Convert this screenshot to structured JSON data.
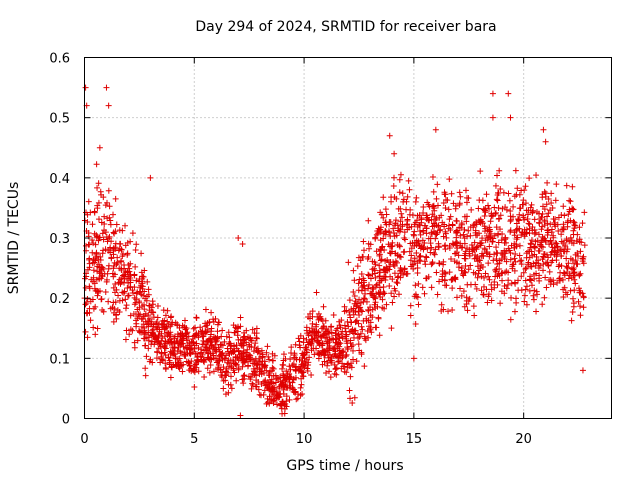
{
  "chart_data": {
    "type": "scatter",
    "title": "Day 294 of 2024, SRMTID for receiver bara",
    "xlabel": "GPS time / hours",
    "ylabel": "SRMTID / TECUs",
    "xlim": [
      0,
      24
    ],
    "ylim": [
      0,
      0.6
    ],
    "x_ticks": [
      0,
      5,
      10,
      15,
      20
    ],
    "x_tick_labels": [
      "0",
      "5",
      "10",
      "15",
      "20"
    ],
    "y_ticks": [
      0,
      0.1,
      0.2,
      0.3,
      0.4,
      0.5,
      0.6
    ],
    "y_tick_labels": [
      "0",
      "0.1",
      "0.2",
      "0.3",
      "0.4",
      "0.5",
      "0.6"
    ],
    "grid": true,
    "marker": "+",
    "color": "#e00000",
    "trend": [
      [
        0.0,
        0.25
      ],
      [
        0.5,
        0.27
      ],
      [
        1.0,
        0.28
      ],
      [
        1.5,
        0.24
      ],
      [
        2.0,
        0.22
      ],
      [
        2.5,
        0.2
      ],
      [
        3.0,
        0.15
      ],
      [
        3.5,
        0.13
      ],
      [
        4.0,
        0.12
      ],
      [
        4.5,
        0.12
      ],
      [
        5.0,
        0.11
      ],
      [
        5.5,
        0.13
      ],
      [
        6.0,
        0.11
      ],
      [
        6.5,
        0.09
      ],
      [
        7.0,
        0.12
      ],
      [
        7.5,
        0.1
      ],
      [
        8.0,
        0.08
      ],
      [
        8.5,
        0.06
      ],
      [
        9.0,
        0.05
      ],
      [
        9.5,
        0.07
      ],
      [
        10.0,
        0.1
      ],
      [
        10.5,
        0.15
      ],
      [
        11.0,
        0.12
      ],
      [
        11.5,
        0.11
      ],
      [
        12.0,
        0.13
      ],
      [
        12.5,
        0.18
      ],
      [
        13.0,
        0.22
      ],
      [
        13.5,
        0.25
      ],
      [
        14.0,
        0.28
      ],
      [
        14.5,
        0.3
      ],
      [
        15.0,
        0.28
      ],
      [
        15.5,
        0.3
      ],
      [
        16.0,
        0.3
      ],
      [
        16.5,
        0.28
      ],
      [
        17.0,
        0.29
      ],
      [
        17.5,
        0.28
      ],
      [
        18.0,
        0.3
      ],
      [
        18.5,
        0.29
      ],
      [
        19.0,
        0.3
      ],
      [
        19.5,
        0.29
      ],
      [
        20.0,
        0.3
      ],
      [
        20.5,
        0.28
      ],
      [
        21.0,
        0.31
      ],
      [
        21.5,
        0.29
      ],
      [
        22.0,
        0.27
      ],
      [
        22.5,
        0.26
      ],
      [
        22.8,
        0.25
      ]
    ],
    "highlights": [
      [
        0.05,
        0.55
      ],
      [
        0.1,
        0.52
      ],
      [
        1.0,
        0.55
      ],
      [
        1.1,
        0.52
      ],
      [
        0.7,
        0.45
      ],
      [
        3.0,
        0.4
      ],
      [
        7.0,
        0.3
      ],
      [
        7.2,
        0.29
      ],
      [
        7.1,
        0.005
      ],
      [
        13.9,
        0.47
      ],
      [
        14.1,
        0.44
      ],
      [
        16.0,
        0.48
      ],
      [
        18.6,
        0.54
      ],
      [
        18.6,
        0.5
      ],
      [
        19.3,
        0.54
      ],
      [
        19.4,
        0.5
      ],
      [
        20.9,
        0.48
      ],
      [
        21.0,
        0.46
      ],
      [
        15.0,
        0.1
      ],
      [
        22.7,
        0.08
      ],
      [
        9.2,
        0.02
      ],
      [
        8.6,
        0.03
      ]
    ]
  }
}
